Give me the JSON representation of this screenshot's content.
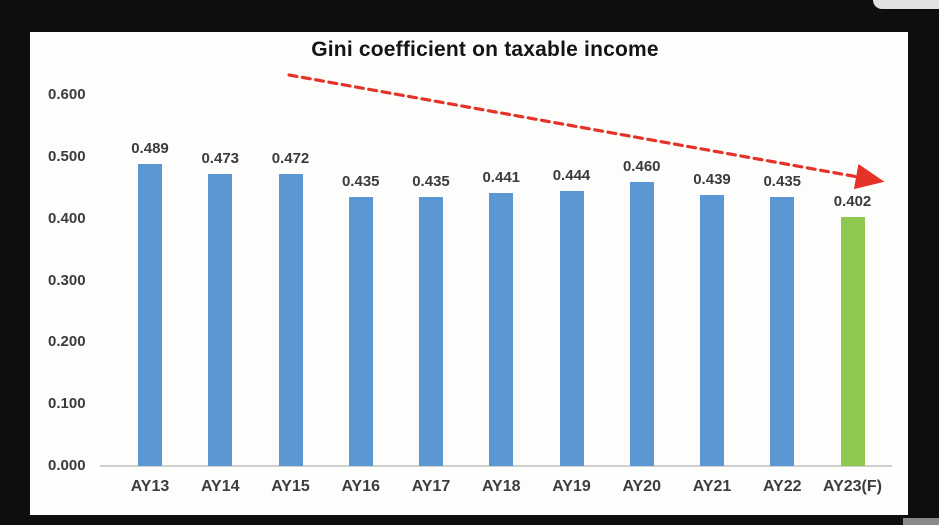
{
  "frame": {
    "background_color": "#0e0e0e",
    "panel_color": "#fdfdfc"
  },
  "chart_data": {
    "type": "bar",
    "title": "Gini coefficient on taxable income",
    "categories": [
      "AY13",
      "AY14",
      "AY15",
      "AY16",
      "AY17",
      "AY18",
      "AY19",
      "AY20",
      "AY21",
      "AY22",
      "AY23(F)"
    ],
    "values": [
      0.489,
      0.473,
      0.472,
      0.435,
      0.435,
      0.441,
      0.444,
      0.46,
      0.439,
      0.435,
      0.402
    ],
    "data_labels": [
      "0.489",
      "0.473",
      "0.472",
      "0.435",
      "0.435",
      "0.441",
      "0.444",
      "0.460",
      "0.439",
      "0.435",
      "0.402"
    ],
    "y_ticks": [
      "0.600",
      "0.500",
      "0.400",
      "0.300",
      "0.200",
      "0.100",
      "0.000"
    ],
    "ylim": [
      0,
      0.6
    ],
    "grid": false,
    "legend": "none",
    "bar_color": "#5b97d2",
    "highlight_bar_color": "#8fc84f",
    "highlight_index": 10,
    "annotation": {
      "kind": "dashed-downward-trend-arrow",
      "color": "#e63329"
    }
  }
}
